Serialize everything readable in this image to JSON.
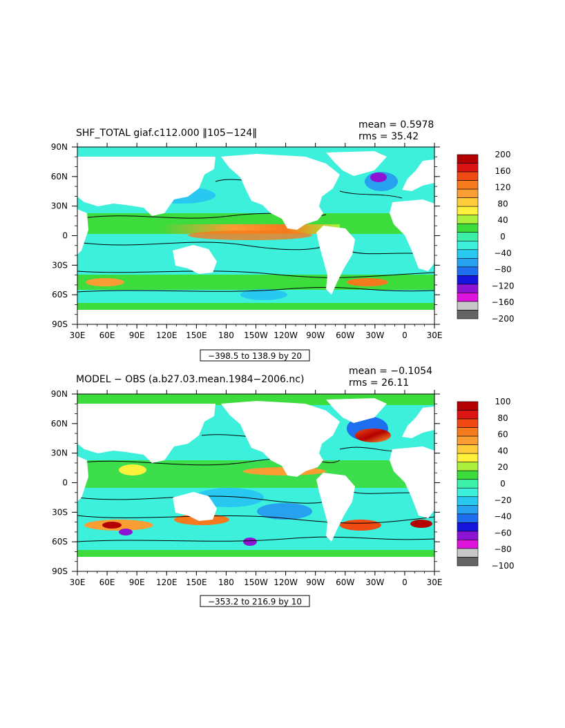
{
  "chart_data": [
    {
      "type": "heatmap",
      "title": "SHF_TOTAL giaf.c112.000 ‖105−124‖",
      "stats": {
        "mean": "mean = 0.5978",
        "rms": "rms = 35.42"
      },
      "x_ticks": [
        "30E",
        "60E",
        "90E",
        "120E",
        "150E",
        "180",
        "150W",
        "120W",
        "90W",
        "60W",
        "30W",
        "0",
        "30E"
      ],
      "y_ticks": [
        "90N",
        "60N",
        "30N",
        "0",
        "30S",
        "60S",
        "90S"
      ],
      "contour_info": "−398.5 to 138.9 by 20",
      "colorbar": {
        "labels": [
          "200",
          "160",
          "120",
          "80",
          "40",
          "0",
          "−40",
          "−80",
          "−120",
          "−160",
          "−200"
        ],
        "colors": [
          "#b40000",
          "#dd1414",
          "#f04a14",
          "#f57a1e",
          "#fa9d32",
          "#ffcd3c",
          "#fff03c",
          "#aaf03c",
          "#3cdc3c",
          "#3cf0aa",
          "#3cf0dc",
          "#28c8f0",
          "#28a0f0",
          "#1e6ef0",
          "#1414dc",
          "#8c14d2",
          "#dc14dc",
          "#c8c8c8",
          "#646464"
        ]
      }
    },
    {
      "type": "heatmap",
      "title": "MODEL − OBS (a.b27.03.mean.1984−2006.nc)",
      "stats": {
        "mean": "mean = −0.1054",
        "rms": "rms = 26.11"
      },
      "x_ticks": [
        "30E",
        "60E",
        "90E",
        "120E",
        "150E",
        "180",
        "150W",
        "120W",
        "90W",
        "60W",
        "30W",
        "0",
        "30E"
      ],
      "y_ticks": [
        "90N",
        "60N",
        "30N",
        "0",
        "30S",
        "60S",
        "90S"
      ],
      "contour_info": "−353.2 to 216.9 by 10",
      "colorbar": {
        "labels": [
          "100",
          "80",
          "60",
          "40",
          "20",
          "0",
          "−20",
          "−40",
          "−60",
          "−80",
          "−100"
        ],
        "colors": [
          "#b40000",
          "#dd1414",
          "#f04a14",
          "#f57a1e",
          "#fa9d32",
          "#ffcd3c",
          "#fff03c",
          "#aaf03c",
          "#3cdc3c",
          "#3cf0aa",
          "#3cf0dc",
          "#28c8f0",
          "#28a0f0",
          "#1e6ef0",
          "#1414dc",
          "#8c14d2",
          "#dc14dc",
          "#c8c8c8",
          "#646464"
        ]
      }
    }
  ]
}
